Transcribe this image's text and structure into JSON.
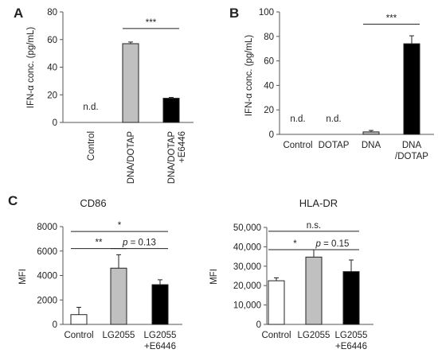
{
  "chart_data": [
    {
      "panel": "A",
      "type": "bar",
      "ylabel": "IFN-α conc. (pg/mL)",
      "ylim": [
        0,
        80
      ],
      "yticks": [
        "0",
        "20",
        "40",
        "60",
        "80"
      ],
      "categories": [
        [
          "Control"
        ],
        [
          "DNA/DOTAP"
        ],
        [
          "DNA/DOTAP",
          "+E6446"
        ]
      ],
      "values": [
        0,
        57,
        17.5
      ],
      "errors": [
        0,
        1.2,
        0.6
      ],
      "colors": [
        "#ffffff",
        "#c0c0c0",
        "#000000"
      ],
      "nd_labels": [
        "n.d.",
        null,
        null
      ],
      "significance": [
        {
          "from": 1,
          "to": 2,
          "label": "***",
          "y": 68
        }
      ]
    },
    {
      "panel": "B",
      "type": "bar",
      "ylabel": "IFN-α conc. (pg/mL)",
      "ylim": [
        0,
        100
      ],
      "yticks": [
        "0",
        "20",
        "40",
        "60",
        "80",
        "100"
      ],
      "categories": [
        [
          "Control"
        ],
        [
          "DOTAP"
        ],
        [
          "DNA"
        ],
        [
          "DNA",
          "/DOTAP"
        ]
      ],
      "values": [
        0,
        0,
        2,
        74
      ],
      "errors": [
        0,
        0,
        1.2,
        6.5
      ],
      "colors": [
        "#ffffff",
        "#ffffff",
        "#c0c0c0",
        "#000000"
      ],
      "nd_labels": [
        "n.d.",
        "n.d.",
        null,
        null
      ],
      "significance": [
        {
          "from": 2,
          "to": 3,
          "label": "***",
          "y": 90
        }
      ]
    },
    {
      "panel": "C",
      "type": "bar",
      "title": "CD86",
      "ylabel": "MFI",
      "ylim": [
        0,
        8000
      ],
      "yticks": [
        "0",
        "2000",
        "4000",
        "6000",
        "8000"
      ],
      "categories": [
        [
          "Control"
        ],
        [
          "LG2055"
        ],
        [
          "LG2055",
          "+E6446"
        ]
      ],
      "values": [
        800,
        4600,
        3250
      ],
      "errors": [
        600,
        1100,
        400
      ],
      "colors": [
        "#ffffff",
        "#c0c0c0",
        "#000000"
      ],
      "nd_labels": [
        null,
        null,
        null
      ],
      "significance": [
        {
          "from": 0,
          "to": 2,
          "label": "*",
          "y": 7600
        },
        {
          "from": 0,
          "to": 1,
          "label": "**",
          "y": 6200
        },
        {
          "from": 1,
          "to": 2,
          "label": "p = 0.13",
          "y": 6200
        }
      ]
    },
    {
      "panel": "",
      "type": "bar",
      "title": "HLA-DR",
      "ylabel": "MFI",
      "ylim": [
        0,
        50000
      ],
      "yticks": [
        "0",
        "10,000",
        "20,000",
        "30,000",
        "40,000",
        "50,000"
      ],
      "categories": [
        [
          "Control"
        ],
        [
          "LG2055"
        ],
        [
          "LG2055",
          "+E6446"
        ]
      ],
      "values": [
        22500,
        34700,
        27200
      ],
      "errors": [
        1500,
        3800,
        6000
      ],
      "colors": [
        "#ffffff",
        "#c0c0c0",
        "#000000"
      ],
      "nd_labels": [
        null,
        null,
        null
      ],
      "significance": [
        {
          "from": 0,
          "to": 2,
          "label": "n.s.",
          "y": 48000
        },
        {
          "from": 0,
          "to": 1,
          "label": "*",
          "y": 38500
        },
        {
          "from": 1,
          "to": 2,
          "label": "p = 0.15",
          "y": 38500
        }
      ]
    }
  ]
}
